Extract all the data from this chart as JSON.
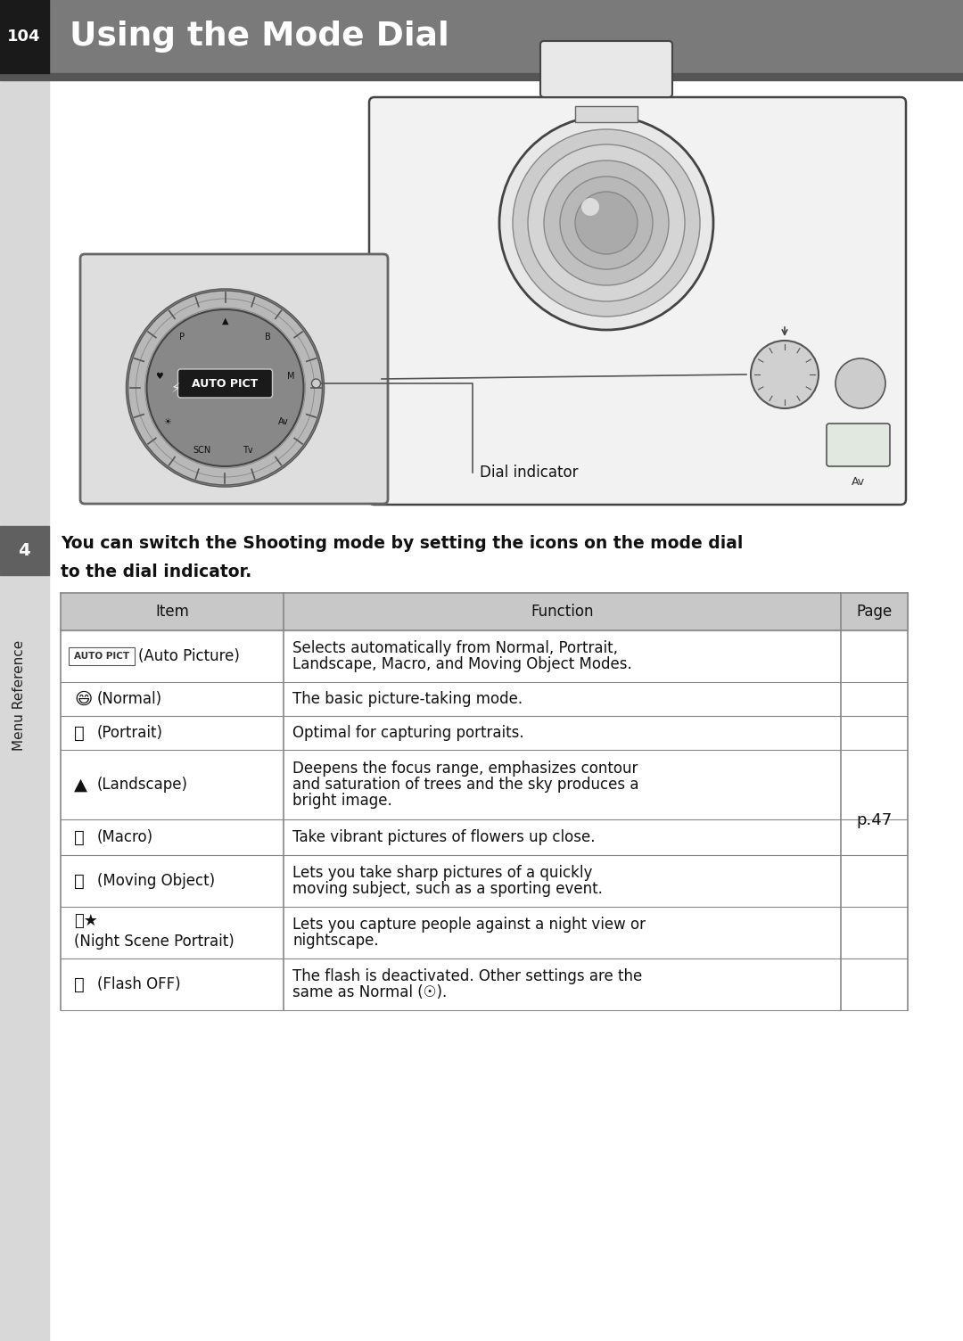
{
  "title": "Using the Mode Dial",
  "page_number": "104",
  "header_bg": "#7a7a7a",
  "header_text_color": "#ffffff",
  "sidebar_bg_light": "#d8d8d8",
  "sidebar_tab_bg": "#606060",
  "sidebar_number_bg": "#1a1a1a",
  "sidebar_label": "Menu Reference",
  "sidebar_number": "4",
  "body_bg": "#ffffff",
  "intro_text_line1": "You can switch the Shooting mode by setting the icons on the mode dial",
  "intro_text_line2": "to the dial indicator.",
  "table_header": [
    "Item",
    "Function",
    "Page"
  ],
  "table_header_bg": "#c8c8c8",
  "table_rows": [
    {
      "item_label": "(Auto Picture)",
      "item_type": "autopict",
      "function_lines": [
        "Selects automatically from Normal, Portrait,",
        "Landscape, Macro, and Moving Object Modes."
      ],
      "page": ""
    },
    {
      "item_label": "(Normal)",
      "item_type": "smiley",
      "function_lines": [
        "The basic picture-taking mode."
      ],
      "page": ""
    },
    {
      "item_label": "(Portrait)",
      "item_type": "portrait",
      "function_lines": [
        "Optimal for capturing portraits."
      ],
      "page": ""
    },
    {
      "item_label": "(Landscape)",
      "item_type": "landscape",
      "function_lines": [
        "Deepens the focus range, emphasizes contour",
        "and saturation of trees and the sky produces a",
        "bright image."
      ],
      "page": ""
    },
    {
      "item_label": "(Macro)",
      "item_type": "macro",
      "function_lines": [
        "Take vibrant pictures of flowers up close."
      ],
      "page": "p.47"
    },
    {
      "item_label": "(Moving Object)",
      "item_type": "moving",
      "function_lines": [
        "Lets you take sharp pictures of a quickly",
        "moving subject, such as a sporting event."
      ],
      "page": ""
    },
    {
      "item_label": "(Night Scene Portrait)",
      "item_type": "night",
      "function_lines": [
        "Lets you capture people against a night view or",
        "nightscape."
      ],
      "page": ""
    },
    {
      "item_label": "(Flash OFF)",
      "item_type": "flash",
      "function_lines": [
        "The flash is deactivated. Other settings are the",
        "same as Normal (☉)."
      ],
      "page": ""
    }
  ],
  "dial_indicator_label": "Dial indicator",
  "table_border_color": "#888888",
  "text_color": "#111111",
  "page_val": "p.47"
}
